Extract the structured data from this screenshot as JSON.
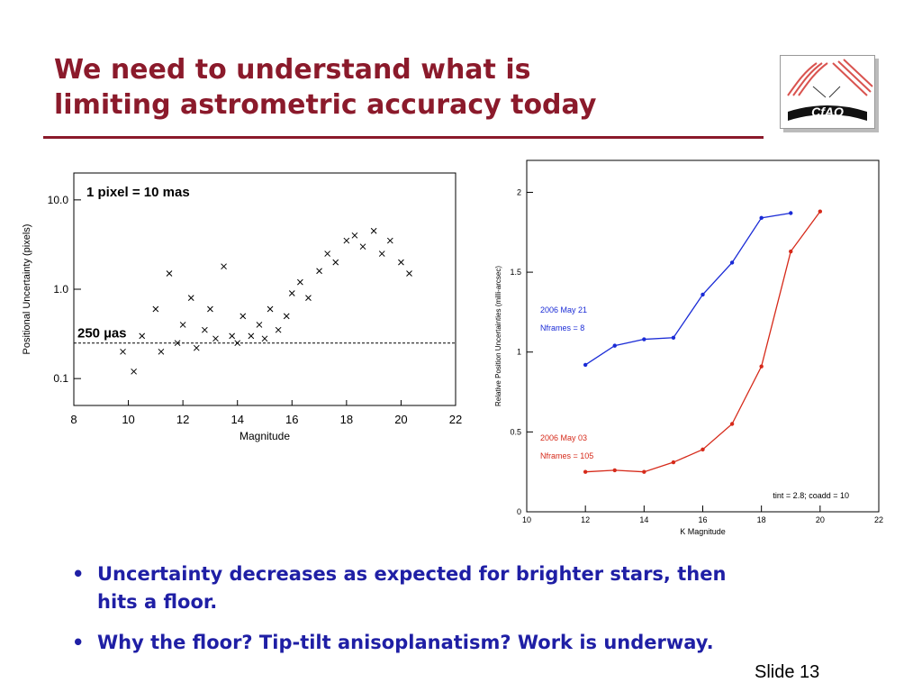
{
  "slide": {
    "title_line1": "We need to understand what is",
    "title_line2": "limiting astrometric accuracy today",
    "slide_number": "Slide 13",
    "accent_color": "#8b1a2b",
    "bullet_color": "#1f1fa5",
    "bullets": [
      {
        "line1": "Uncertainty decreases as expected for brighter stars, then",
        "line2": "hits a floor."
      },
      {
        "line1": "Why the floor?  Tip-tilt anisoplanatism?  Work is underway.",
        "line2": ""
      }
    ],
    "bullet_glyph": "•",
    "logo": {
      "text": "CfAO",
      "icon": "cfao-logo-icon"
    }
  },
  "chart_data": [
    {
      "type": "scatter",
      "xlabel": "Magnitude",
      "ylabel": "Positional Uncertainty (pixels)",
      "xlim": [
        8,
        22
      ],
      "ylim": [
        0.05,
        20
      ],
      "y_scale": "log",
      "x_ticks": [
        "8",
        "10",
        "12",
        "14",
        "16",
        "18",
        "20",
        "22"
      ],
      "y_ticks": [
        "0.1",
        "1.0",
        "10.0"
      ],
      "annotations": [
        "1 pixel = 10 mas",
        "250 µas"
      ],
      "reference_line": {
        "y": 0.25,
        "style": "dashed"
      },
      "marker": "x",
      "series": [
        {
          "x": [
            9.8,
            10.2,
            10.5,
            11.0,
            11.2,
            11.5,
            11.8,
            12.0,
            12.3,
            12.5,
            12.8,
            13.0,
            13.2,
            13.5,
            13.8,
            14.0,
            14.2,
            14.5,
            14.8,
            15.0,
            15.2,
            15.5,
            15.8,
            16.0,
            16.3,
            16.6,
            17.0,
            17.3,
            17.6,
            18.0,
            18.3,
            18.6,
            19.0,
            19.3,
            19.6,
            20.0,
            20.3
          ],
          "y": [
            0.2,
            0.12,
            0.3,
            0.6,
            0.2,
            1.5,
            0.25,
            0.4,
            0.8,
            0.22,
            0.35,
            0.6,
            0.28,
            1.8,
            0.3,
            0.25,
            0.5,
            0.3,
            0.4,
            0.28,
            0.6,
            0.35,
            0.5,
            0.9,
            1.2,
            0.8,
            1.6,
            2.5,
            2.0,
            3.5,
            4.0,
            3.0,
            4.5,
            2.5,
            3.5,
            2.0,
            1.5
          ]
        }
      ]
    },
    {
      "type": "line",
      "xlabel": "K Magnitude",
      "ylabel": "Relative Position Uncertainties (milli-arcsec)",
      "xlim": [
        10,
        22
      ],
      "ylim": [
        0,
        2.2
      ],
      "x_ticks": [
        "10",
        "12",
        "14",
        "16",
        "18",
        "20",
        "22"
      ],
      "y_ticks": [
        "0",
        "0.5",
        "1",
        "1.5",
        "2"
      ],
      "footnote": "tint = 2.8; coadd = 10",
      "series": [
        {
          "label_line1": "2006 May 21",
          "label_line2": "Nframes =    8",
          "color": "#1a2bd6",
          "x": [
            12,
            13,
            14,
            15,
            16,
            17,
            18,
            19
          ],
          "y": [
            0.92,
            1.04,
            1.08,
            1.09,
            1.36,
            1.56,
            1.84,
            1.87
          ]
        },
        {
          "label_line1": "2006 May 03",
          "label_line2": "Nframes = 105",
          "color": "#d62a1a",
          "x": [
            12,
            13,
            14,
            15,
            16,
            17,
            18,
            19,
            20
          ],
          "y": [
            0.25,
            0.26,
            0.25,
            0.31,
            0.39,
            0.55,
            0.91,
            1.63,
            1.88
          ]
        }
      ]
    }
  ]
}
